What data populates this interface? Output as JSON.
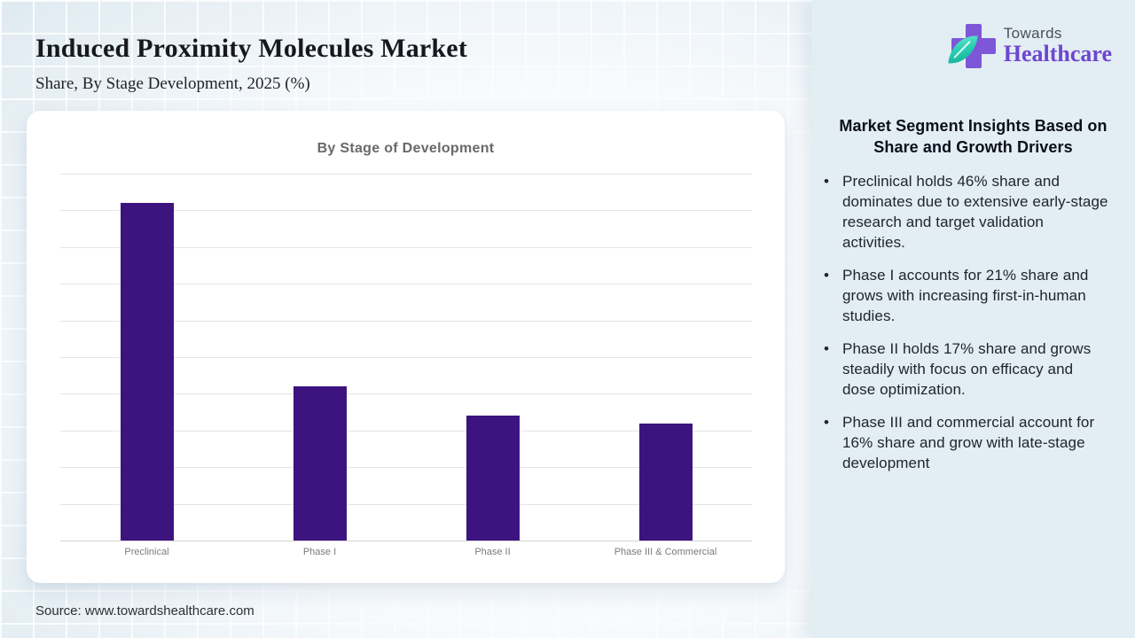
{
  "page": {
    "title": "Induced Proximity Molecules Market",
    "subtitle": "Share, By Stage Development, 2025 (%)",
    "source": "Source: www.towardshealthcare.com"
  },
  "logo": {
    "brand_top": "Towards",
    "brand_bottom": "Healthcare",
    "cross_color": "#7d57d8",
    "leaf_color": "#2cd0b4",
    "wordmark_color": "#6d47cf"
  },
  "chart_data": {
    "type": "bar",
    "title": "By Stage of Development",
    "categories": [
      "Preclinical",
      "Phase I",
      "Phase II",
      "Phase III & Commercial"
    ],
    "values": [
      46,
      21,
      17,
      16
    ],
    "unit": "%",
    "xlabel": "",
    "ylabel": "",
    "ylim": [
      0,
      50
    ],
    "grid_step": 5,
    "grid": true,
    "y_tick_labels_visible": false,
    "legend": "none",
    "bar_color": "#3d1380"
  },
  "insights": {
    "marker": "•",
    "heading": "Market Segment Insights Based on Share and Growth Drivers",
    "bullets": [
      "Preclinical holds 46% share and dominates due to extensive early-stage research and target validation activities.",
      "Phase I accounts for 21% share and grows with increasing first-in-human studies.",
      "Phase II holds 17% share and grows steadily with focus on efficacy and dose optimization.",
      "Phase III and commercial account for 16% share and grow with late-stage development"
    ]
  }
}
